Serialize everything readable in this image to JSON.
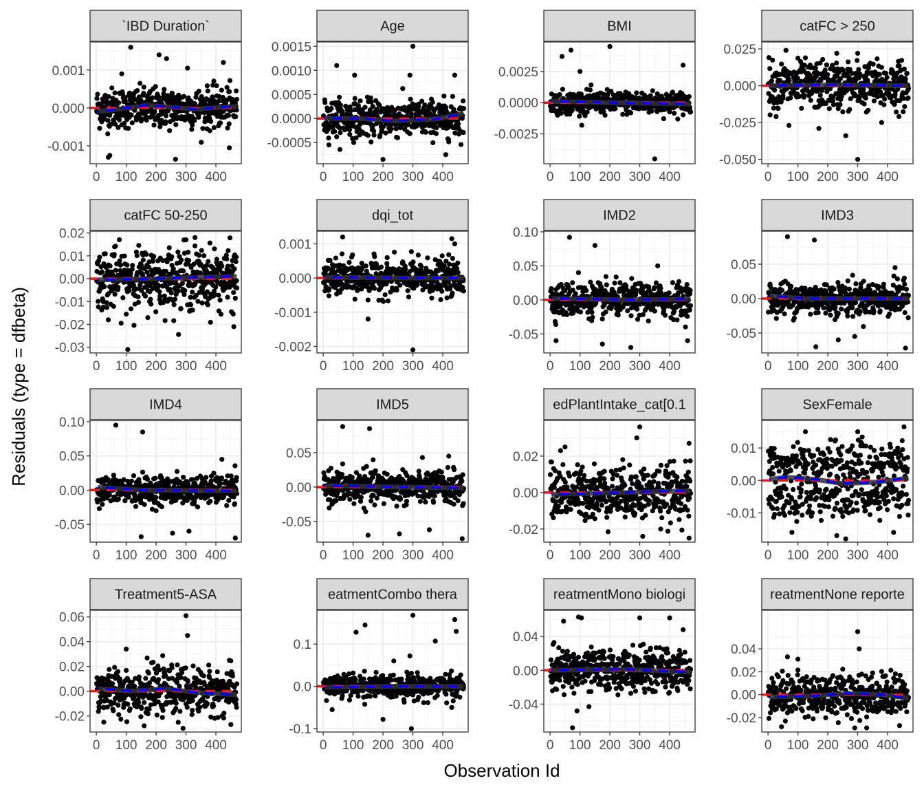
{
  "chart_data": {
    "type": "scatter",
    "title": "",
    "xlabel": "Observation Id",
    "ylabel": "Residuals (type = dfbeta)",
    "grid": true,
    "xlim": [
      -21,
      485
    ],
    "x_ticks": [
      0,
      100,
      200,
      300,
      400
    ],
    "x_tick_labels": [
      "0",
      "100",
      "200",
      "300",
      "400"
    ],
    "n_obs": 470,
    "reference_line": {
      "y": 0,
      "color": "#E41A1C",
      "style": "dashed"
    },
    "smooth_line": {
      "color": "#0000FF",
      "style": "dashed",
      "ribbon_color": "#999999"
    },
    "point_color": "#000000",
    "panels": [
      {
        "label": "`IBD Duration`",
        "ylim": [
          -0.00147,
          0.00174
        ],
        "y_ticks": [
          -0.001,
          0,
          0.001
        ],
        "y_tick_labels": [
          "-0.001",
          "0.000",
          "0.001"
        ],
        "spread_sd": 0.00026,
        "outliers": [
          [
            115,
            0.0016
          ],
          [
            210,
            0.0014
          ],
          [
            235,
            0.0013
          ],
          [
            305,
            0.00105
          ],
          [
            425,
            0.0012
          ],
          [
            265,
            -0.00135
          ],
          [
            40,
            -0.0013
          ],
          [
            45,
            -0.00125
          ],
          [
            85,
            0.0009
          ],
          [
            445,
            -0.00105
          ]
        ],
        "smooth": [
          [
            5,
            -0.0001
          ],
          [
            170,
            7e-05
          ],
          [
            330,
            -3e-05
          ],
          [
            470,
            4e-05
          ]
        ]
      },
      {
        "label": "Age",
        "ylim": [
          -0.00094,
          0.00159
        ],
        "y_ticks": [
          -0.0005,
          0,
          0.0005,
          0.001,
          0.0015
        ],
        "y_tick_labels": [
          "-0.0005",
          "0.0000",
          "0.0005",
          "0.0010",
          "0.0015"
        ],
        "spread_sd": 0.00019,
        "outliers": [
          [
            300,
            0.0015
          ],
          [
            45,
            0.0011
          ],
          [
            290,
            0.0009
          ],
          [
            105,
            0.0009
          ],
          [
            410,
            -0.00075
          ],
          [
            200,
            -0.00085
          ],
          [
            440,
            0.0009
          ]
        ],
        "smooth": [
          [
            5,
            0
          ],
          [
            120,
            0
          ],
          [
            240,
            -5e-05
          ],
          [
            380,
            -1e-05
          ],
          [
            470,
            0.0001
          ]
        ]
      },
      {
        "label": "BMI",
        "ylim": [
          -0.00489,
          0.00486
        ],
        "y_ticks": [
          -0.0025,
          0,
          0.0025
        ],
        "y_tick_labels": [
          "-0.0025",
          "0.0000",
          "0.0025"
        ],
        "spread_sd": 0.00045,
        "outliers": [
          [
            70,
            0.0042
          ],
          [
            200,
            0.0045
          ],
          [
            40,
            0.0037
          ],
          [
            350,
            -0.0045
          ],
          [
            445,
            0.003
          ],
          [
            100,
            0.0025
          ]
        ],
        "smooth": [
          [
            5,
            0.0001
          ],
          [
            200,
            0
          ],
          [
            470,
            -0.0001
          ]
        ]
      },
      {
        "label": "catFC > 250",
        "ylim": [
          -0.053,
          0.0297
        ],
        "y_ticks": [
          -0.05,
          -0.025,
          0,
          0.025
        ],
        "y_tick_labels": [
          "-0.050",
          "-0.025",
          "0.000",
          "0.025"
        ],
        "spread_sd": 0.008,
        "outliers": [
          [
            300,
            -0.05
          ],
          [
            70,
            -0.027
          ],
          [
            170,
            -0.029
          ],
          [
            260,
            -0.034
          ],
          [
            380,
            -0.025
          ],
          [
            60,
            0.024
          ],
          [
            230,
            0.022
          ],
          [
            300,
            0.022
          ]
        ],
        "smooth": [
          [
            5,
            0
          ],
          [
            200,
            0.0005
          ],
          [
            470,
            0
          ]
        ]
      },
      {
        "label": "catFC 50-250",
        "ylim": [
          -0.0325,
          0.0208
        ],
        "y_ticks": [
          -0.03,
          -0.02,
          -0.01,
          0,
          0.01,
          0.02
        ],
        "y_tick_labels": [
          "-0.03",
          "-0.02",
          "-0.01",
          "0.00",
          "0.01",
          "0.02"
        ],
        "spread_sd": 0.0065,
        "outliers": [
          [
            105,
            -0.031
          ],
          [
            330,
            0.018
          ],
          [
            460,
            -0.021
          ],
          [
            40,
            -0.018
          ],
          [
            300,
            0.017
          ]
        ],
        "smooth": [
          [
            5,
            -0.0005
          ],
          [
            200,
            0
          ],
          [
            470,
            0.001
          ]
        ]
      },
      {
        "label": "dqi_tot",
        "ylim": [
          -0.00219,
          0.00137
        ],
        "y_ticks": [
          -0.002,
          -0.001,
          0,
          0.001
        ],
        "y_tick_labels": [
          "-0.002",
          "-0.001",
          "0.000",
          "0.001"
        ],
        "spread_sd": 0.00026,
        "outliers": [
          [
            65,
            0.0012
          ],
          [
            300,
            -0.0021
          ],
          [
            150,
            -0.0012
          ],
          [
            430,
            0.00115
          ],
          [
            440,
            0.001
          ]
        ],
        "smooth": [
          [
            5,
            2e-05
          ],
          [
            250,
            0
          ],
          [
            470,
            0
          ]
        ]
      },
      {
        "label": "IMD2",
        "ylim": [
          -0.078,
          0.101
        ],
        "y_ticks": [
          -0.05,
          0,
          0.05,
          0.1
        ],
        "y_tick_labels": [
          "-0.05",
          "0.00",
          "0.05",
          "0.10"
        ],
        "spread_sd": 0.012,
        "outliers": [
          [
            65,
            0.092
          ],
          [
            150,
            0.08
          ],
          [
            20,
            -0.06
          ],
          [
            360,
            0.05
          ],
          [
            270,
            -0.07
          ],
          [
            460,
            -0.06
          ],
          [
            175,
            -0.065
          ],
          [
            95,
            0.04
          ]
        ],
        "smooth": [
          [
            5,
            0.002
          ],
          [
            250,
            0
          ],
          [
            470,
            0.001
          ]
        ]
      },
      {
        "label": "IMD3",
        "ylim": [
          -0.079,
          0.098
        ],
        "y_ticks": [
          -0.05,
          0,
          0.05
        ],
        "y_tick_labels": [
          "-0.05",
          "0.00",
          "0.05"
        ],
        "spread_sd": 0.012,
        "outliers": [
          [
            65,
            0.09
          ],
          [
            155,
            0.085
          ],
          [
            160,
            -0.07
          ],
          [
            460,
            -0.072
          ],
          [
            290,
            -0.055
          ],
          [
            235,
            -0.06
          ],
          [
            425,
            0.045
          ]
        ],
        "smooth": [
          [
            5,
            0.004
          ],
          [
            120,
            0
          ],
          [
            470,
            0
          ]
        ]
      },
      {
        "label": "IMD4",
        "ylim": [
          -0.076,
          0.102
        ],
        "y_ticks": [
          -0.05,
          0,
          0.05,
          0.1
        ],
        "y_tick_labels": [
          "-0.05",
          "0.00",
          "0.05",
          "0.10"
        ],
        "spread_sd": 0.01,
        "outliers": [
          [
            65,
            0.095
          ],
          [
            155,
            0.085
          ],
          [
            150,
            -0.068
          ],
          [
            465,
            -0.07
          ],
          [
            310,
            -0.06
          ],
          [
            255,
            -0.063
          ],
          [
            420,
            0.045
          ]
        ],
        "smooth": [
          [
            5,
            0.004
          ],
          [
            150,
            0
          ],
          [
            470,
            -0.001
          ]
        ]
      },
      {
        "label": "IMD5",
        "ylim": [
          -0.08,
          0.097
        ],
        "y_ticks": [
          -0.05,
          0,
          0.05
        ],
        "y_tick_labels": [
          "-0.05",
          "0.00",
          "0.05"
        ],
        "spread_sd": 0.012,
        "outliers": [
          [
            65,
            0.088
          ],
          [
            155,
            0.085
          ],
          [
            150,
            -0.07
          ],
          [
            465,
            -0.075
          ],
          [
            355,
            -0.062
          ],
          [
            255,
            -0.068
          ],
          [
            420,
            0.045
          ]
        ],
        "smooth": [
          [
            5,
            0.002
          ],
          [
            250,
            0
          ],
          [
            470,
            -0.001
          ]
        ]
      },
      {
        "label": "edPlantIntake_cat[0.1",
        "ylim": [
          -0.0272,
          0.0396
        ],
        "y_ticks": [
          -0.02,
          0,
          0.02
        ],
        "y_tick_labels": [
          "-0.02",
          "0.00",
          "0.02"
        ],
        "spread_sd": 0.007,
        "outliers": [
          [
            300,
            0.036
          ],
          [
            290,
            0.03
          ],
          [
            465,
            0.027
          ],
          [
            310,
            -0.024
          ],
          [
            465,
            -0.025
          ],
          [
            370,
            -0.02
          ],
          [
            50,
            0.025
          ],
          [
            35,
            0.023
          ]
        ],
        "smooth": [
          [
            5,
            -0.001
          ],
          [
            250,
            0
          ],
          [
            470,
            0.001
          ]
        ]
      },
      {
        "label": "SexFemale",
        "ylim": [
          -0.019,
          0.0185
        ],
        "y_ticks": [
          -0.01,
          0,
          0.01
        ],
        "y_tick_labels": [
          "-0.01",
          "0.00",
          "0.01"
        ],
        "spread_sd": 0.003,
        "bimodal_offset": 0.0055,
        "outliers": [
          [
            455,
            0.0165
          ],
          [
            300,
            0.015
          ],
          [
            125,
            0.015
          ],
          [
            260,
            -0.018
          ],
          [
            230,
            -0.017
          ],
          [
            420,
            -0.016
          ],
          [
            80,
            -0.016
          ]
        ],
        "smooth": [
          [
            5,
            0.0003
          ],
          [
            60,
            0.001
          ],
          [
            160,
            0.0003
          ],
          [
            250,
            -0.001
          ],
          [
            360,
            -0.0005
          ],
          [
            470,
            0.0007
          ]
        ]
      },
      {
        "label": "Treatment5-ASA",
        "ylim": [
          -0.033,
          0.0654
        ],
        "y_ticks": [
          -0.02,
          0,
          0.02,
          0.04,
          0.06
        ],
        "y_tick_labels": [
          "-0.02",
          "0.00",
          "0.02",
          "0.04",
          "0.06"
        ],
        "spread_sd": 0.009,
        "outliers": [
          [
            300,
            0.061
          ],
          [
            305,
            0.045
          ],
          [
            100,
            0.034
          ],
          [
            25,
            -0.025
          ],
          [
            160,
            -0.028
          ],
          [
            450,
            -0.027
          ],
          [
            290,
            -0.03
          ]
        ],
        "smooth": [
          [
            5,
            0.002
          ],
          [
            120,
            0
          ],
          [
            230,
            0.002
          ],
          [
            330,
            -0.001
          ],
          [
            470,
            -0.003
          ]
        ]
      },
      {
        "label": "eatmentCombo thera",
        "ylim": [
          -0.108,
          0.18
        ],
        "y_ticks": [
          -0.1,
          0,
          0.1
        ],
        "y_tick_labels": [
          "-0.1",
          "0.0",
          "0.1"
        ],
        "spread_sd": 0.014,
        "outliers": [
          [
            300,
            0.168
          ],
          [
            440,
            0.158
          ],
          [
            140,
            0.145
          ],
          [
            110,
            0.128
          ],
          [
            375,
            0.107
          ],
          [
            290,
            0.072
          ],
          [
            445,
            0.13
          ],
          [
            200,
            -0.078
          ],
          [
            295,
            -0.1
          ],
          [
            30,
            -0.055
          ],
          [
            430,
            -0.05
          ]
        ],
        "smooth": [
          [
            5,
            -0.002
          ],
          [
            250,
            0
          ],
          [
            470,
            0
          ]
        ]
      },
      {
        "label": "reatmentMono biologi",
        "ylim": [
          -0.073,
          0.071
        ],
        "y_ticks": [
          -0.04,
          0,
          0.04
        ],
        "y_tick_labels": [
          "-0.04",
          "0.00",
          "0.04"
        ],
        "spread_sd": 0.012,
        "outliers": [
          [
            95,
            0.063
          ],
          [
            400,
            0.062
          ],
          [
            300,
            0.062
          ],
          [
            105,
            0.062
          ],
          [
            75,
            -0.068
          ],
          [
            90,
            -0.048
          ],
          [
            130,
            -0.043
          ],
          [
            445,
            0.048
          ],
          [
            45,
            0.058
          ]
        ],
        "smooth": [
          [
            5,
            0
          ],
          [
            250,
            0.001
          ],
          [
            470,
            -0.002
          ]
        ]
      },
      {
        "label": "reatmentNone reporte",
        "ylim": [
          -0.0326,
          0.0737
        ],
        "y_ticks": [
          -0.02,
          0,
          0.02,
          0.04
        ],
        "y_tick_labels": [
          "-0.02",
          "0.00",
          "0.02",
          "0.04"
        ],
        "spread_sd": 0.009,
        "outliers": [
          [
            300,
            0.055
          ],
          [
            305,
            0.04
          ],
          [
            65,
            0.033
          ],
          [
            100,
            0.031
          ],
          [
            330,
            -0.029
          ],
          [
            45,
            -0.028
          ],
          [
            440,
            -0.027
          ],
          [
            290,
            -0.029
          ]
        ],
        "smooth": [
          [
            5,
            -0.002
          ],
          [
            150,
            -0.001
          ],
          [
            270,
            0.001
          ],
          [
            380,
            0
          ],
          [
            470,
            -0.003
          ]
        ]
      }
    ]
  }
}
